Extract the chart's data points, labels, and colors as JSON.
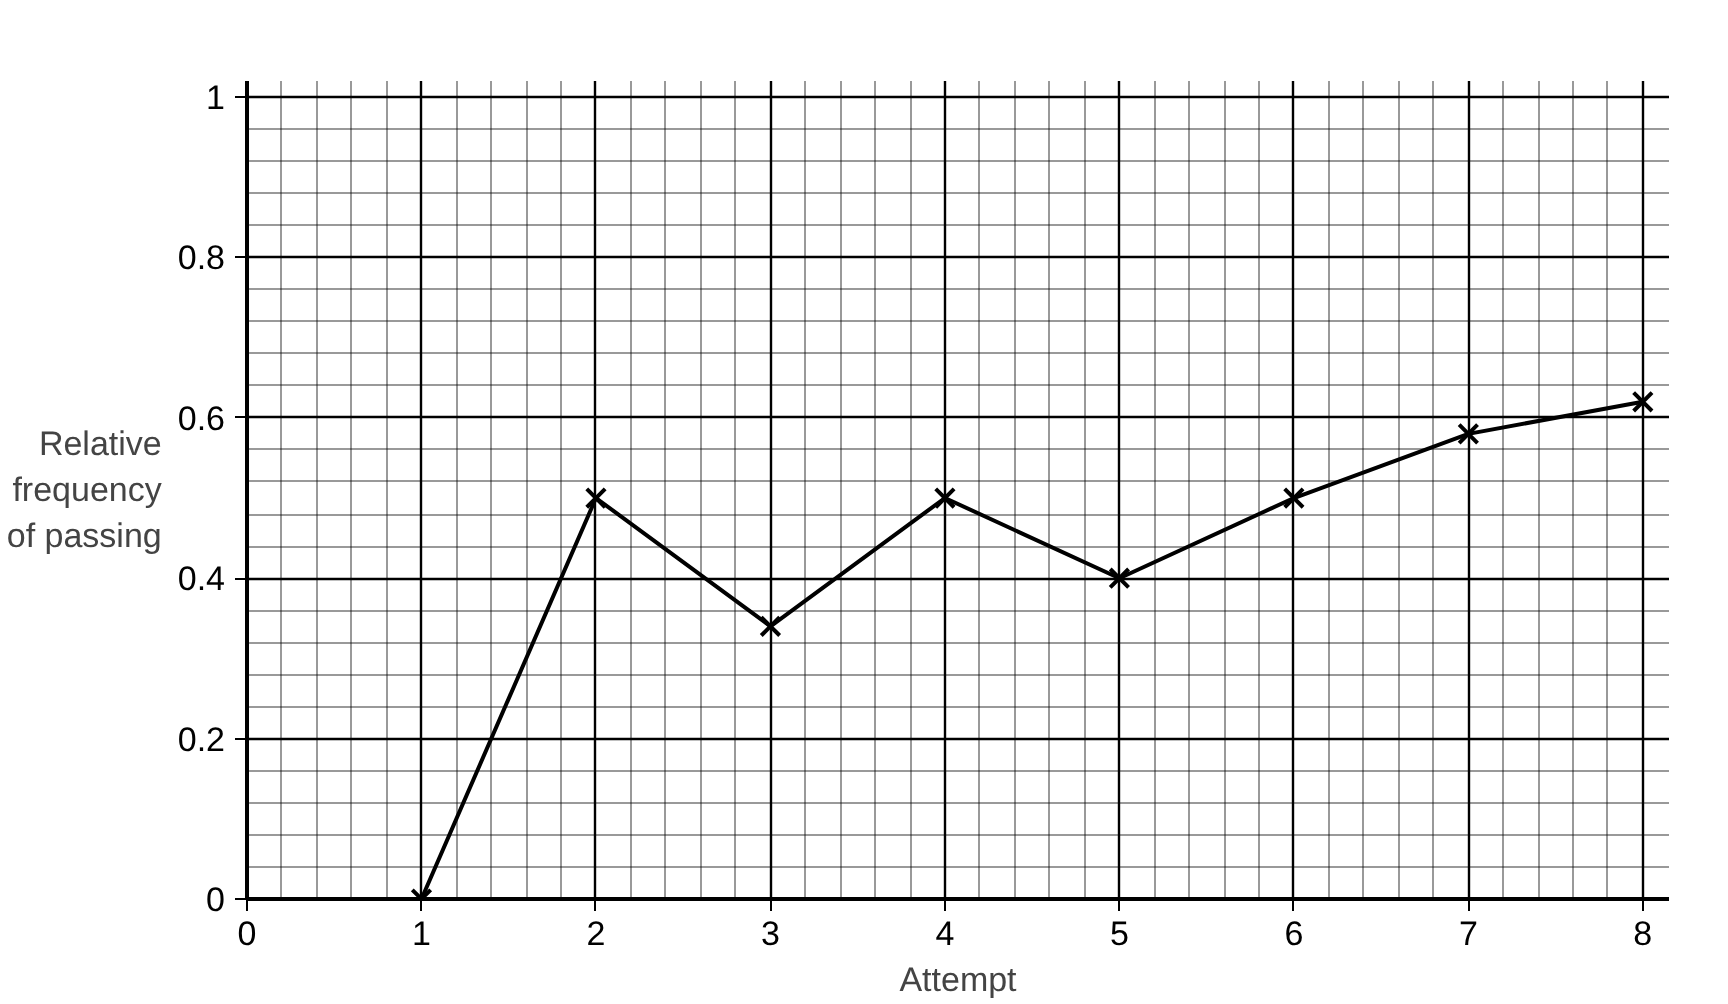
{
  "chart_data": {
    "type": "line",
    "xlabel": "Attempt",
    "ylabel": "Relative frequency of passing",
    "x": [
      1,
      2,
      3,
      4,
      5,
      6,
      7,
      8
    ],
    "series": [
      {
        "color": "#000000",
        "values": [
          0,
          0.5,
          0.34,
          0.5,
          0.4,
          0.5,
          0.58,
          0.62
        ]
      }
    ],
    "xlim": [
      0,
      8.15
    ],
    "ylim": [
      0,
      1.02
    ],
    "xticks": [
      0,
      1,
      2,
      3,
      4,
      5,
      6,
      7,
      8
    ],
    "yticks": [
      0,
      0.2,
      0.4,
      0.6,
      0.8,
      1
    ],
    "grid": true,
    "marker": "cross",
    "line_style": "solid"
  }
}
